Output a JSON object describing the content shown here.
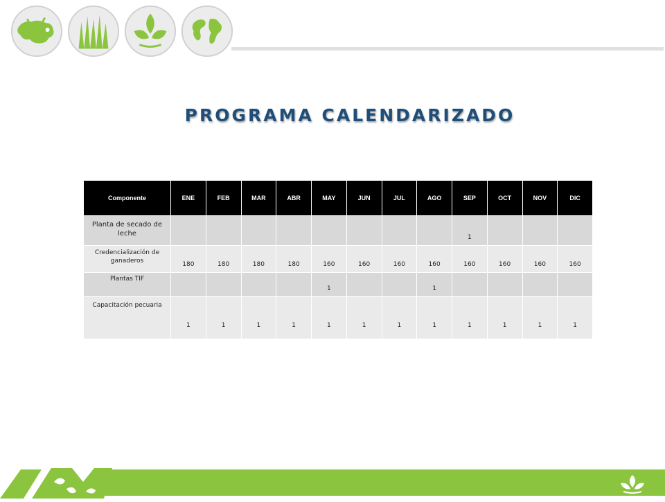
{
  "title": "PROGRAMA CALENDARIZADO",
  "logos": [
    {
      "icon": "cow-icon"
    },
    {
      "icon": "grass-icon"
    },
    {
      "icon": "leaf-icon"
    },
    {
      "icon": "globe-icon"
    }
  ],
  "colors": {
    "title": "#1f4e79",
    "accent_green": "#8bc53f",
    "header_bg": "#000000",
    "row_dark": "#d8d8d8",
    "row_light": "#eaeaea"
  },
  "table": {
    "header_component": "Componente",
    "months": [
      "ENE",
      "FEB",
      "MAR",
      "ABR",
      "MAY",
      "JUN",
      "JUL",
      "AGO",
      "SEP",
      "OCT",
      "NOV",
      "DIC"
    ],
    "rows": [
      {
        "label": "Planta de secado de leche",
        "values": [
          "",
          "",
          "",
          "",
          "",
          "",
          "",
          "",
          "1",
          "",
          "",
          ""
        ]
      },
      {
        "label": "Credencialización de ganaderos",
        "values": [
          "180",
          "180",
          "180",
          "180",
          "160",
          "160",
          "160",
          "160",
          "160",
          "160",
          "160",
          "160"
        ]
      },
      {
        "label": "Plantas TIF",
        "values": [
          "",
          "",
          "",
          "",
          "1",
          "",
          "",
          "1",
          "",
          "",
          "",
          ""
        ]
      },
      {
        "label": "Capacitación pecuaria",
        "values": [
          "1",
          "1",
          "1",
          "1",
          "1",
          "1",
          "1",
          "1",
          "1",
          "1",
          "1",
          "1"
        ]
      }
    ]
  }
}
